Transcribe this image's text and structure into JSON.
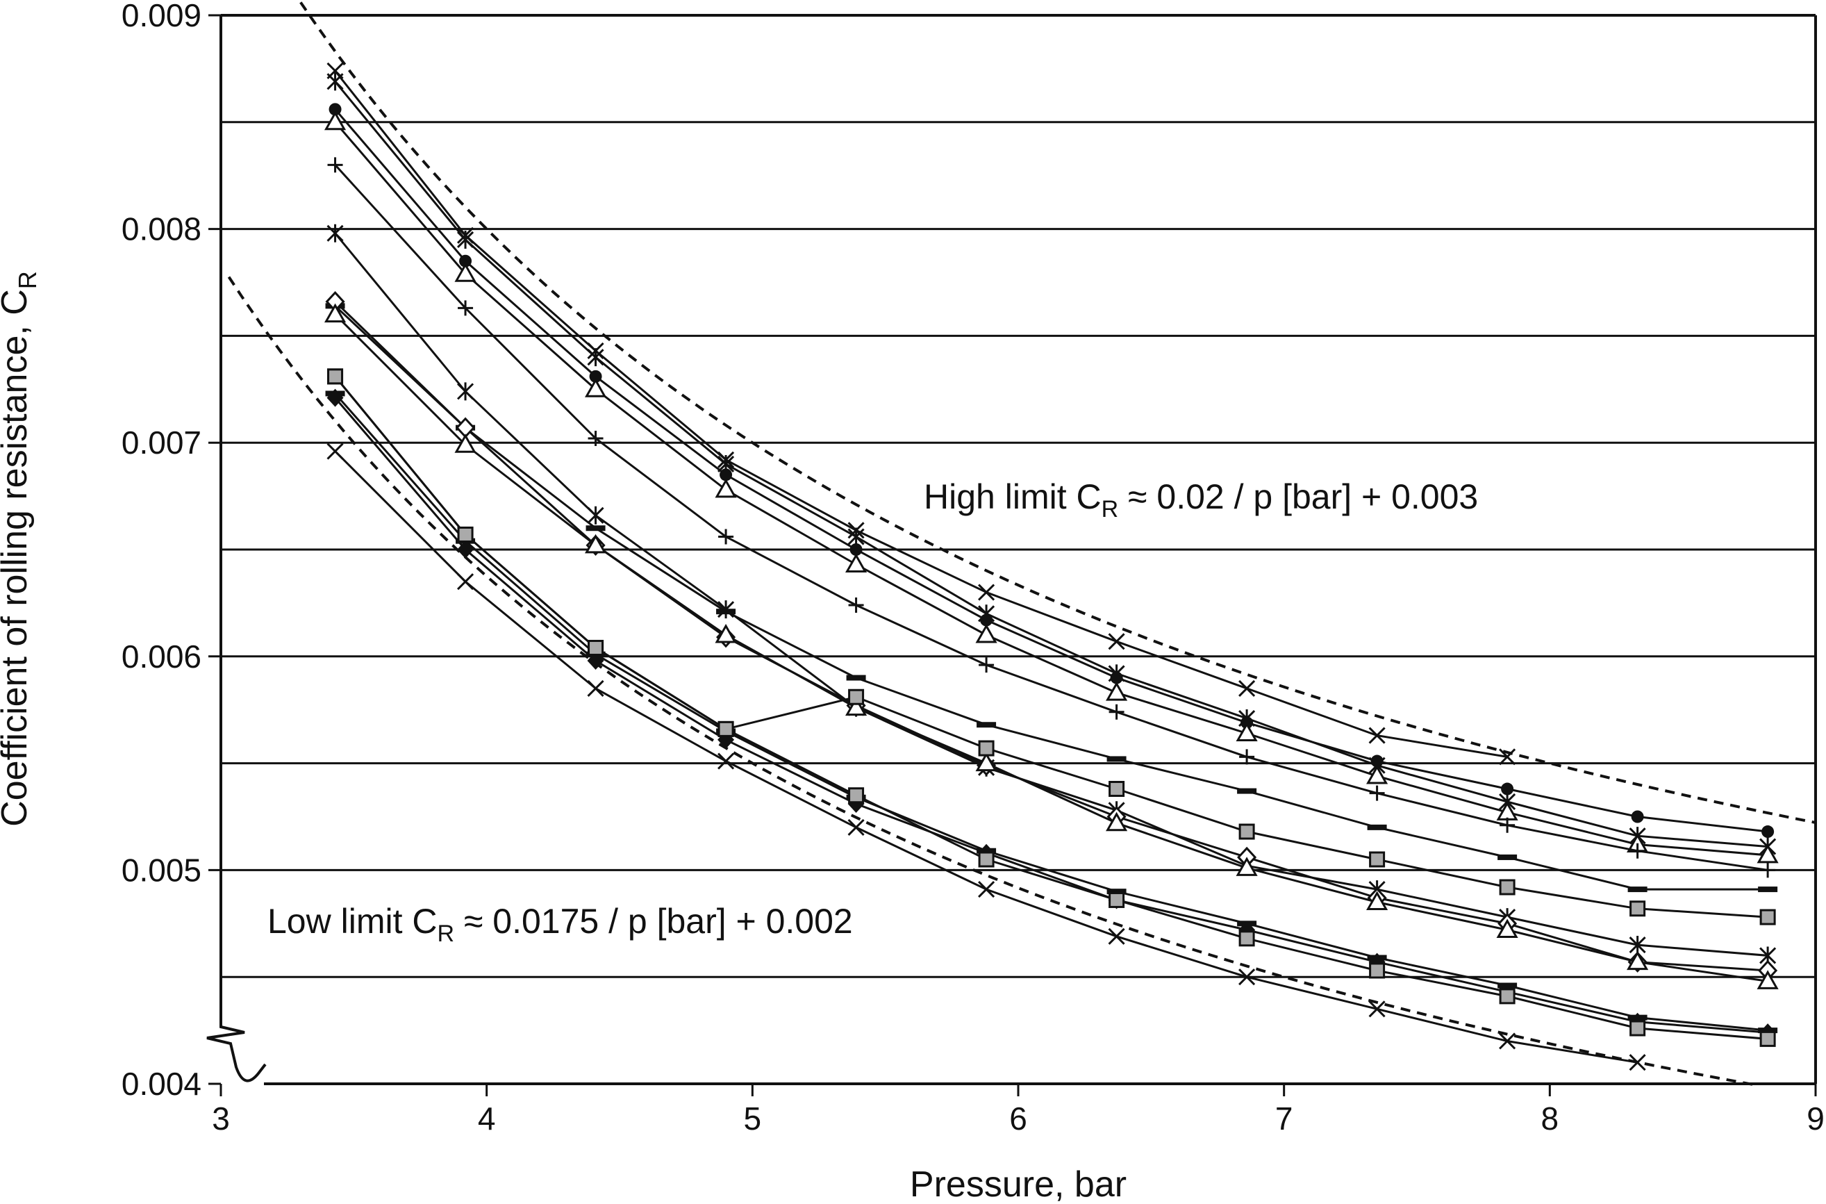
{
  "chart_data": {
    "type": "line",
    "xlabel": "Pressure, bar",
    "ylabel": "Coefficient of rolling resistance, C",
    "ylabel_sub": "R",
    "xlim": [
      3,
      9
    ],
    "ylim": [
      0.004,
      0.009
    ],
    "x_ticks": [
      "3",
      "4",
      "5",
      "6",
      "7",
      "8",
      "9"
    ],
    "y_ticks": [
      "0.004",
      "0.005",
      "0.006",
      "0.007",
      "0.008",
      "0.009"
    ],
    "gridlines_y": [
      0.0045,
      0.005,
      0.0055,
      0.006,
      0.0065,
      0.007,
      0.0075,
      0.008,
      0.0085
    ],
    "axis_break": "y near 0.004",
    "annotations": [
      {
        "id": "high",
        "text_pre": "High limit C",
        "sub": "R",
        "text_post": " ≈ 0.02 / p [bar] + 0.003"
      },
      {
        "id": "low",
        "text_pre": "Low limit C",
        "sub": "R",
        "text_post": " ≈ 0.0175 / p [bar] + 0.002"
      }
    ],
    "limits": [
      {
        "id": "high",
        "a": 0.02,
        "b": 0.003,
        "x_range": [
          3.3,
          9.0
        ]
      },
      {
        "id": "low",
        "a": 0.0175,
        "b": 0.002,
        "x_range": [
          3.03,
          8.78
        ]
      }
    ],
    "x": [
      3.43,
      3.92,
      4.41,
      4.9,
      5.39,
      5.88,
      6.37,
      6.86,
      7.35,
      7.84,
      8.33,
      8.82
    ],
    "series": [
      {
        "marker": "x",
        "values": [
          0.00874,
          0.00797,
          0.00743,
          0.00692,
          0.00659,
          0.0063,
          0.00607,
          0.00585,
          0.00563,
          0.00553,
          null,
          null
        ]
      },
      {
        "marker": "star",
        "values": [
          0.00869,
          0.00795,
          0.0074,
          0.0069,
          0.00656,
          0.0062,
          0.00592,
          0.00571,
          0.00549,
          0.00532,
          0.00516,
          0.00511
        ]
      },
      {
        "marker": "circle",
        "values": [
          0.00856,
          0.00785,
          0.00731,
          0.00685,
          0.0065,
          0.00617,
          0.0059,
          0.00569,
          0.00551,
          0.00538,
          0.00525,
          0.00518
        ]
      },
      {
        "marker": "triangle",
        "values": [
          0.0085,
          0.00779,
          0.00725,
          0.00678,
          0.00643,
          0.0061,
          0.00583,
          0.00564,
          0.00544,
          0.00527,
          0.00512,
          0.00507
        ]
      },
      {
        "marker": "plus",
        "values": [
          0.0083,
          0.00763,
          0.00702,
          0.00656,
          0.00624,
          0.00596,
          0.00574,
          0.00553,
          0.00536,
          0.00521,
          0.00509,
          0.005
        ]
      },
      {
        "marker": "star",
        "values": [
          0.00798,
          0.00724,
          0.00666,
          0.00622,
          0.00576,
          0.00548,
          0.00528,
          0.00502,
          0.00491,
          0.00478,
          0.00465,
          0.0046
        ]
      },
      {
        "marker": "dash",
        "values": [
          0.00764,
          0.00707,
          0.0066,
          0.00621,
          0.0059,
          0.00568,
          0.00552,
          0.00537,
          0.0052,
          0.00506,
          0.00491,
          0.00491
        ]
      },
      {
        "marker": "diamond-open",
        "values": [
          0.00766,
          0.00707,
          0.00652,
          0.00609,
          0.00577,
          0.00549,
          0.00525,
          0.00506,
          0.00487,
          0.00475,
          0.00457,
          0.00453
        ]
      },
      {
        "marker": "triangle",
        "values": [
          0.0076,
          0.00699,
          0.00652,
          0.0061,
          0.00576,
          0.0055,
          0.00522,
          0.00501,
          0.00485,
          0.00472,
          0.00457,
          0.00448
        ]
      },
      {
        "marker": "square-gray",
        "values": [
          0.00731,
          0.00657,
          0.00604,
          0.00566,
          0.00581,
          0.00557,
          0.00538,
          0.00518,
          0.00505,
          0.00492,
          0.00482,
          0.00478
        ]
      },
      {
        "marker": "dash",
        "values": [
          0.00723,
          0.00654,
          0.00601,
          0.00565,
          0.00534,
          0.00509,
          0.0049,
          0.00475,
          0.00459,
          0.00446,
          0.00431,
          0.00425
        ]
      },
      {
        "marker": "diamond-filled",
        "values": [
          0.00721,
          0.0065,
          0.00598,
          0.00561,
          0.00531,
          0.00508,
          0.00486,
          0.00472,
          0.00457,
          0.00443,
          0.00429,
          0.00424
        ]
      },
      {
        "marker": "square-gray",
        "values": [
          0.00731,
          0.00657,
          0.00604,
          0.00566,
          0.00535,
          0.00505,
          0.00486,
          0.00468,
          0.00453,
          0.00441,
          0.00426,
          0.00421
        ]
      },
      {
        "marker": "x",
        "values": [
          0.00696,
          0.00635,
          0.00585,
          0.00551,
          0.0052,
          0.00491,
          0.00469,
          0.0045,
          0.00435,
          0.0042,
          0.0041,
          null
        ]
      }
    ],
    "grid": true,
    "legend": "none"
  }
}
